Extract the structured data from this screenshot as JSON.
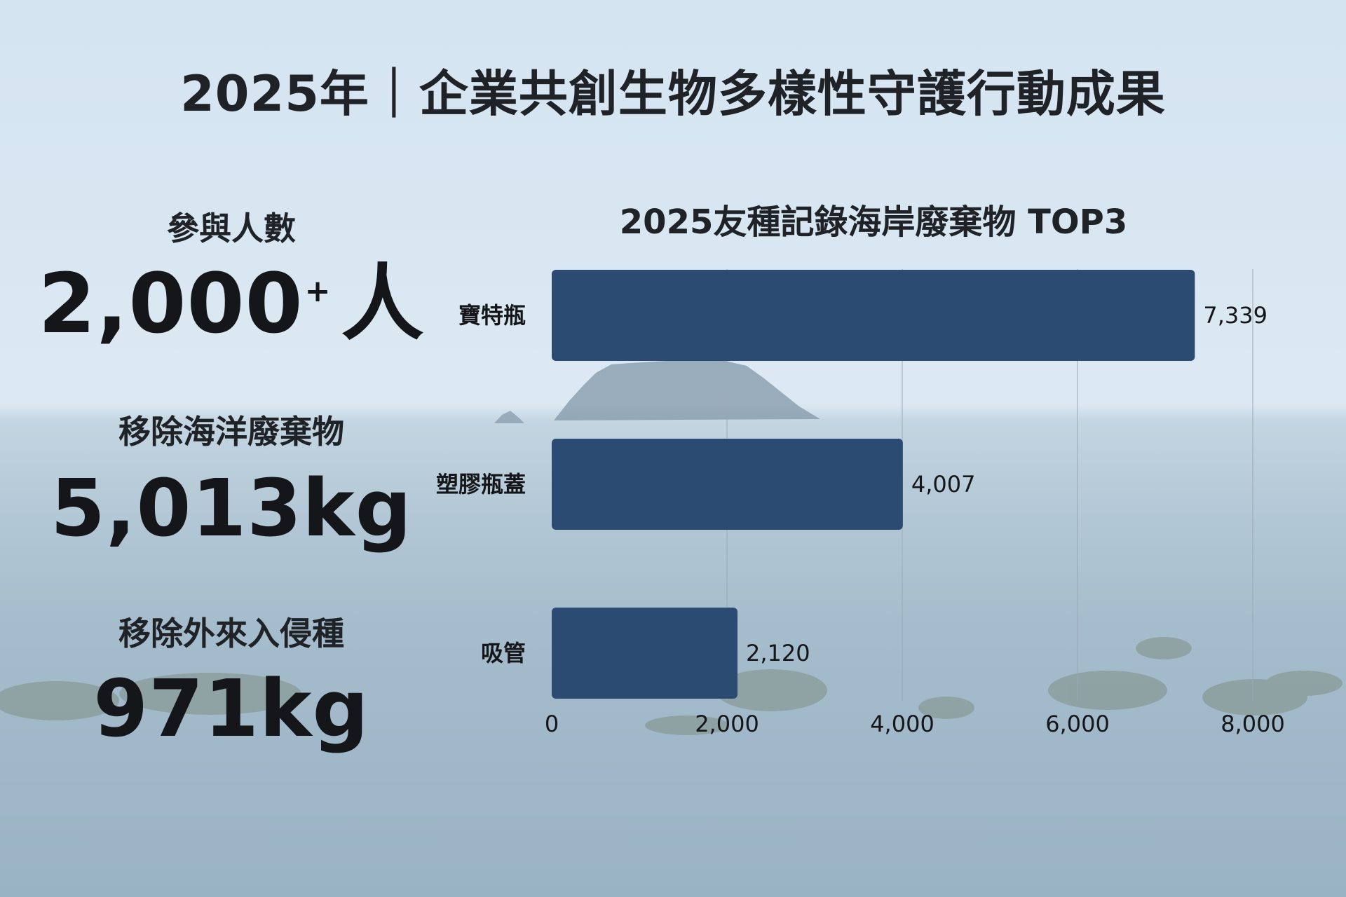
{
  "page": {
    "title": "2025年｜企業共創生物多樣性守護行動成果"
  },
  "stats": [
    {
      "label": "參與人數",
      "value": "2,000",
      "sup": "+",
      "unit": "人"
    },
    {
      "label": "移除海洋廢棄物",
      "value": "5,013kg"
    },
    {
      "label": "移除外來入侵種",
      "value": "971kg"
    }
  ],
  "chart_data": {
    "type": "bar",
    "orientation": "horizontal",
    "title": "2025友種記錄海岸廢棄物  TOP3",
    "categories": [
      "寶特瓶",
      "塑膠瓶蓋",
      "吸管"
    ],
    "values": [
      7339,
      4007,
      2120
    ],
    "value_labels": [
      "7,339",
      "4,007",
      "2,120"
    ],
    "xlim": [
      0,
      8000
    ],
    "x_ticks": [
      0,
      2000,
      4000,
      6000,
      8000
    ],
    "x_tick_labels": [
      "0",
      "2,000",
      "4,000",
      "6,000",
      "8,000"
    ],
    "grid": true,
    "bar_color": "#2b4b72",
    "grid_color": "#9aa8b4"
  }
}
